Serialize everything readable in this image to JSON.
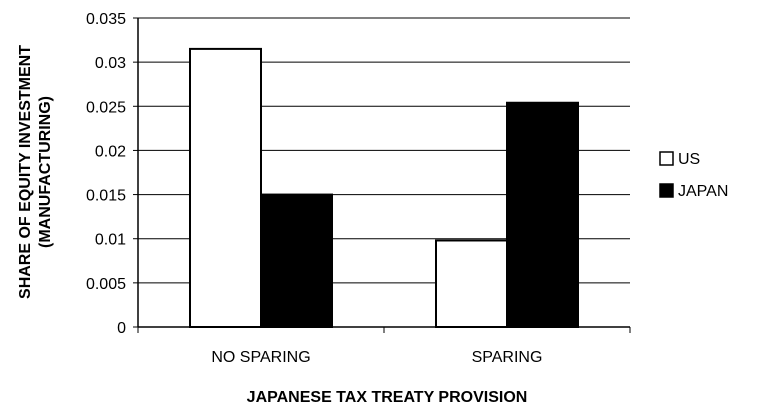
{
  "chart_data": {
    "type": "bar",
    "categories": [
      "NO SPARING",
      "SPARING"
    ],
    "series": [
      {
        "name": "US",
        "values": [
          0.0315,
          0.0098
        ],
        "color": "#ffffff"
      },
      {
        "name": "JAPAN",
        "values": [
          0.015,
          0.0254
        ],
        "color": "#000000"
      }
    ],
    "xlabel": "JAPANESE TAX TREATY PROVISION",
    "ylabel_lines": [
      "SHARE OF EQUITY INVESTMENT",
      "(MANUFACTURING)"
    ],
    "ylim": [
      0,
      0.035
    ],
    "yticks": [
      0,
      0.005,
      0.01,
      0.015,
      0.02,
      0.025,
      0.03,
      0.035
    ],
    "ytick_labels": [
      "0",
      "0.005",
      "0.01",
      "0.015",
      "0.02",
      "0.025",
      "0.03",
      "0.035"
    ],
    "grid": true,
    "legend_position": "right"
  }
}
